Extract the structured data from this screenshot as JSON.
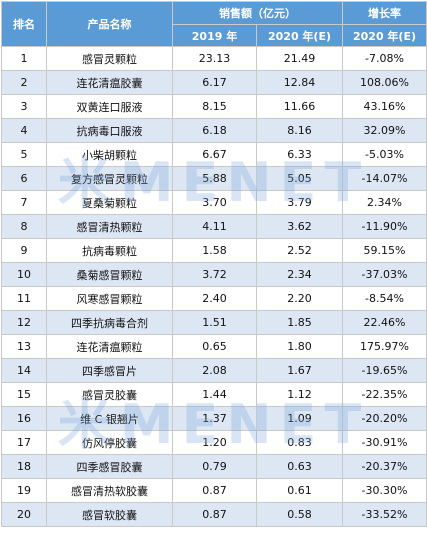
{
  "header": {
    "rank": "排名",
    "name": "产品名称",
    "sales_group": "销售额（亿元）",
    "growth": "增长率",
    "year1": "2019 年",
    "year2": "2020 年(E)",
    "growth_year": "2020 年(E)"
  },
  "rows": [
    {
      "rank": "1",
      "name": "感冒灵颗粒",
      "y2019": "23.13",
      "y2020": "21.49",
      "growth": "-7.08%"
    },
    {
      "rank": "2",
      "name": "连花清瘟胶囊",
      "y2019": "6.17",
      "y2020": "12.84",
      "growth": "108.06%"
    },
    {
      "rank": "3",
      "name": "双黄连口服液",
      "y2019": "8.15",
      "y2020": "11.66",
      "growth": "43.16%"
    },
    {
      "rank": "4",
      "name": "抗病毒口服液",
      "y2019": "6.18",
      "y2020": "8.16",
      "growth": "32.09%"
    },
    {
      "rank": "5",
      "name": "小柴胡颗粒",
      "y2019": "6.67",
      "y2020": "6.33",
      "growth": "-5.03%"
    },
    {
      "rank": "6",
      "name": "复方感冒灵颗粒",
      "y2019": "5.88",
      "y2020": "5.05",
      "growth": "-14.07%"
    },
    {
      "rank": "7",
      "name": "夏桑菊颗粒",
      "y2019": "3.70",
      "y2020": "3.79",
      "growth": "2.34%"
    },
    {
      "rank": "8",
      "name": "感冒清热颗粒",
      "y2019": "4.11",
      "y2020": "3.62",
      "growth": "-11.90%"
    },
    {
      "rank": "9",
      "name": "抗病毒颗粒",
      "y2019": "1.58",
      "y2020": "2.52",
      "growth": "59.15%"
    },
    {
      "rank": "10",
      "name": "桑菊感冒颗粒",
      "y2019": "3.72",
      "y2020": "2.34",
      "growth": "-37.03%"
    },
    {
      "rank": "11",
      "name": "风寒感冒颗粒",
      "y2019": "2.40",
      "y2020": "2.20",
      "growth": "-8.54%"
    },
    {
      "rank": "12",
      "name": "四季抗病毒合剂",
      "y2019": "1.51",
      "y2020": "1.85",
      "growth": "22.46%"
    },
    {
      "rank": "13",
      "name": "连花清瘟颗粒",
      "y2019": "0.65",
      "y2020": "1.80",
      "growth": "175.97%"
    },
    {
      "rank": "14",
      "name": "四季感冒片",
      "y2019": "2.08",
      "y2020": "1.67",
      "growth": "-19.65%"
    },
    {
      "rank": "15",
      "name": "感冒灵胶囊",
      "y2019": "1.44",
      "y2020": "1.12",
      "growth": "-22.35%"
    },
    {
      "rank": "16",
      "name": "维 C 银翘片",
      "y2019": "1.37",
      "y2020": "1.09",
      "growth": "-20.20%"
    },
    {
      "rank": "17",
      "name": "仿风停胶囊",
      "y2019": "1.20",
      "y2020": "0.83",
      "growth": "-30.91%"
    },
    {
      "rank": "18",
      "name": "四季感冒胶囊",
      "y2019": "0.79",
      "y2020": "0.63",
      "growth": "-20.37%"
    },
    {
      "rank": "19",
      "name": "感冒清热软胶囊",
      "y2019": "0.87",
      "y2020": "0.61",
      "growth": "-30.30%"
    },
    {
      "rank": "20",
      "name": "感冒软胶囊",
      "y2019": "0.87",
      "y2020": "0.58",
      "growth": "-33.52%"
    }
  ],
  "watermark": "米MENET",
  "colors": {
    "header_bg": "#5b9bd5",
    "stripe": "#dde7f4",
    "header_text": "#ffffff"
  }
}
